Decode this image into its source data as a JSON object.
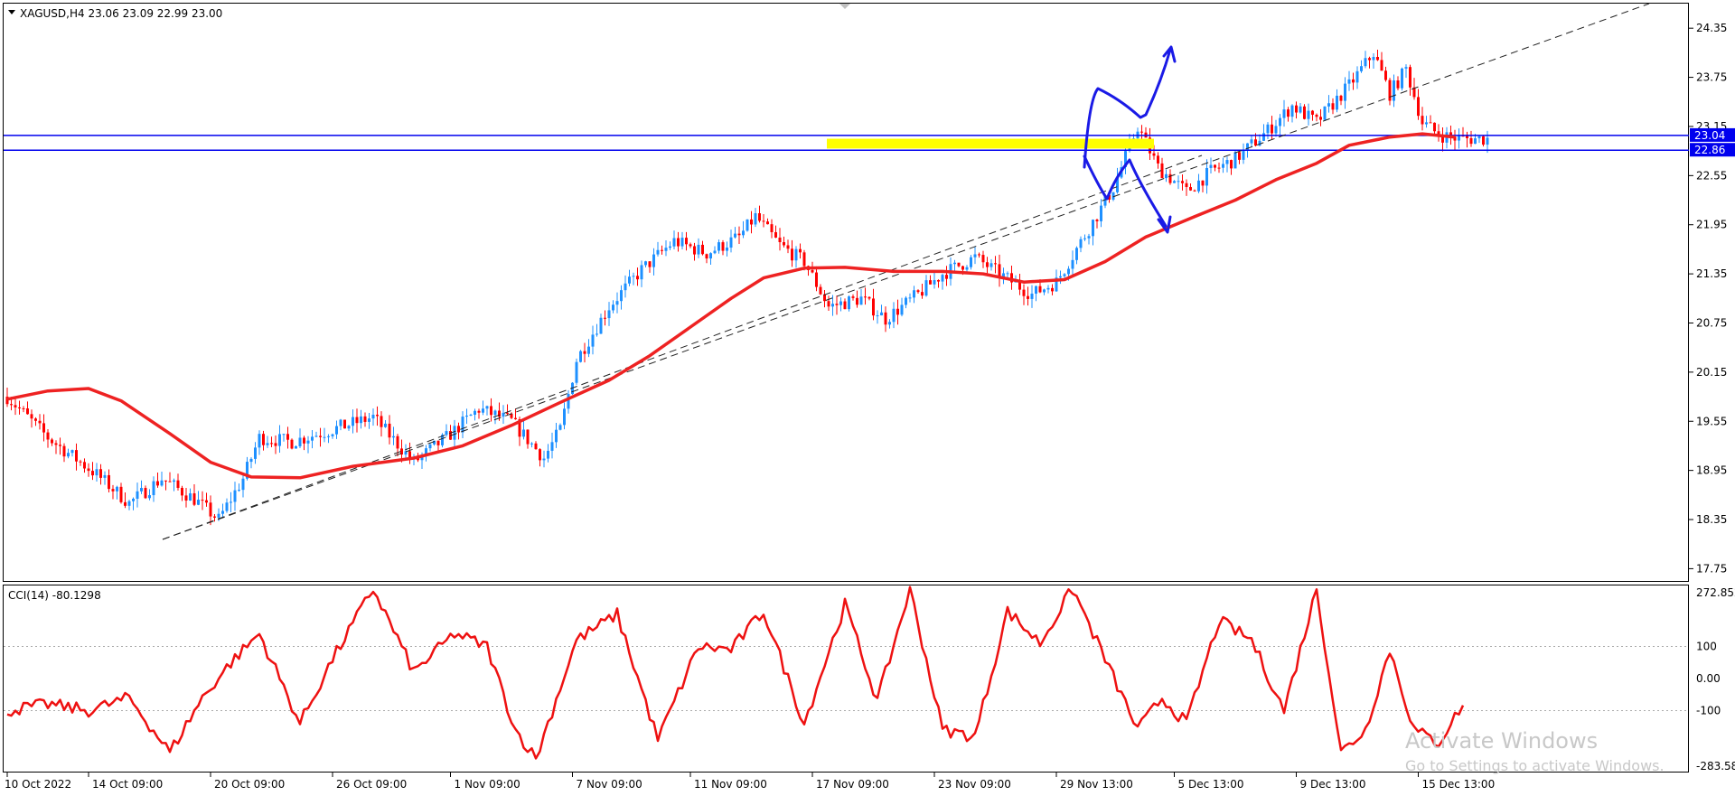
{
  "header": {
    "symbol_line": "XAGUSD,H4  23.06 23.09 22.99 23.00",
    "cci_label": "CCI(14) -80.1298"
  },
  "price_axis": {
    "ticks": [
      "24.35",
      "23.75",
      "23.15",
      "22.55",
      "21.95",
      "21.35",
      "20.75",
      "20.15",
      "19.55",
      "18.95",
      "18.35",
      "17.75"
    ],
    "tick_values": [
      24.35,
      23.75,
      23.15,
      22.55,
      21.95,
      21.35,
      20.75,
      20.15,
      19.55,
      18.95,
      18.35,
      17.75
    ],
    "range": [
      17.6,
      24.65
    ],
    "level_labels": [
      "23.04",
      "22.86"
    ],
    "level_values": [
      23.04,
      22.86
    ]
  },
  "cci_axis": {
    "ticks": [
      "272.852",
      "100",
      "0.00",
      "-100",
      "-283.582"
    ],
    "tick_values": [
      272.852,
      100,
      0,
      -100,
      -283.582
    ],
    "range": [
      -290,
      290
    ]
  },
  "time_axis": {
    "labels": [
      "10 Oct 2022",
      "14 Oct 09:00",
      "20 Oct 09:00",
      "26 Oct 09:00",
      "1 Nov 09:00",
      "7 Nov 09:00",
      "11 Nov 09:00",
      "17 Nov 09:00",
      "23 Nov 09:00",
      "29 Nov 13:00",
      "5 Dec 13:00",
      "9 Dec 13:00",
      "15 Dec 13:00"
    ],
    "label_positions": [
      0,
      20,
      50,
      80,
      109,
      139,
      168,
      198,
      228,
      258,
      287,
      317,
      347
    ]
  },
  "colors": {
    "bull": "#1e90ff",
    "bear": "#ff0000",
    "ma": "#ee2222",
    "cci": "#ee1111",
    "level": "#0000ee",
    "zone": "#ffff00",
    "drawing": "#1a1ae6",
    "trendline": "#222222",
    "axis_text": "#000000"
  },
  "chart_data": [
    {
      "type": "candlestick",
      "symbol": "XAGUSD",
      "timeframe": "H4",
      "bar_count": 365,
      "close_anchors": [
        [
          0,
          19.85
        ],
        [
          10,
          19.35
        ],
        [
          22,
          18.9
        ],
        [
          30,
          18.55
        ],
        [
          38,
          18.85
        ],
        [
          46,
          18.6
        ],
        [
          52,
          18.35
        ],
        [
          58,
          18.85
        ],
        [
          62,
          19.35
        ],
        [
          70,
          19.3
        ],
        [
          80,
          19.45
        ],
        [
          90,
          19.6
        ],
        [
          100,
          19.05
        ],
        [
          108,
          19.35
        ],
        [
          116,
          19.7
        ],
        [
          124,
          19.55
        ],
        [
          132,
          19.1
        ],
        [
          136,
          19.45
        ],
        [
          140,
          20.3
        ],
        [
          148,
          20.95
        ],
        [
          156,
          21.4
        ],
        [
          164,
          21.75
        ],
        [
          172,
          21.6
        ],
        [
          180,
          21.8
        ],
        [
          184,
          22.05
        ],
        [
          190,
          21.7
        ],
        [
          196,
          21.5
        ],
        [
          202,
          20.95
        ],
        [
          210,
          21.05
        ],
        [
          216,
          20.8
        ],
        [
          224,
          21.1
        ],
        [
          230,
          21.35
        ],
        [
          238,
          21.55
        ],
        [
          244,
          21.35
        ],
        [
          252,
          21.1
        ],
        [
          258,
          21.25
        ],
        [
          266,
          21.9
        ],
        [
          272,
          22.4
        ],
        [
          278,
          23.15
        ],
        [
          283,
          22.65
        ],
        [
          290,
          22.35
        ],
        [
          296,
          22.6
        ],
        [
          302,
          22.75
        ],
        [
          310,
          23.1
        ],
        [
          316,
          23.4
        ],
        [
          322,
          23.2
        ],
        [
          330,
          23.65
        ],
        [
          336,
          24.05
        ],
        [
          340,
          23.55
        ],
        [
          344,
          23.85
        ],
        [
          348,
          23.2
        ],
        [
          352,
          23.05
        ],
        [
          357,
          23.0
        ]
      ],
      "moving_average": [
        [
          0,
          19.82
        ],
        [
          10,
          19.92
        ],
        [
          20,
          19.95
        ],
        [
          28,
          19.8
        ],
        [
          40,
          19.4
        ],
        [
          50,
          19.05
        ],
        [
          60,
          18.87
        ],
        [
          72,
          18.86
        ],
        [
          85,
          19.0
        ],
        [
          100,
          19.1
        ],
        [
          112,
          19.25
        ],
        [
          124,
          19.5
        ],
        [
          136,
          19.78
        ],
        [
          148,
          20.05
        ],
        [
          158,
          20.35
        ],
        [
          168,
          20.7
        ],
        [
          178,
          21.05
        ],
        [
          186,
          21.3
        ],
        [
          196,
          21.42
        ],
        [
          206,
          21.43
        ],
        [
          218,
          21.38
        ],
        [
          230,
          21.38
        ],
        [
          240,
          21.35
        ],
        [
          250,
          21.25
        ],
        [
          260,
          21.28
        ],
        [
          270,
          21.5
        ],
        [
          280,
          21.8
        ],
        [
          292,
          22.05
        ],
        [
          302,
          22.25
        ],
        [
          312,
          22.5
        ],
        [
          322,
          22.7
        ],
        [
          330,
          22.92
        ],
        [
          340,
          23.02
        ],
        [
          348,
          23.06
        ],
        [
          356,
          23.02
        ]
      ],
      "levels": [
        23.04,
        22.86
      ],
      "zone": [
        22.88,
        23.0
      ]
    },
    {
      "type": "line",
      "name": "CCI(14)",
      "last_value": -80.1298,
      "values": [
        [
          0,
          -100
        ],
        [
          10,
          -80
        ],
        [
          20,
          -100
        ],
        [
          30,
          -60
        ],
        [
          40,
          -230
        ],
        [
          48,
          -60
        ],
        [
          55,
          50
        ],
        [
          62,
          140
        ],
        [
          72,
          -140
        ],
        [
          80,
          60
        ],
        [
          90,
          280
        ],
        [
          100,
          20
        ],
        [
          110,
          140
        ],
        [
          118,
          100
        ],
        [
          125,
          -160
        ],
        [
          130,
          -250
        ],
        [
          140,
          120
        ],
        [
          150,
          200
        ],
        [
          160,
          -190
        ],
        [
          170,
          100
        ],
        [
          178,
          90
        ],
        [
          186,
          210
        ],
        [
          196,
          -140
        ],
        [
          206,
          230
        ],
        [
          214,
          -70
        ],
        [
          222,
          280
        ],
        [
          230,
          -160
        ],
        [
          238,
          -180
        ],
        [
          246,
          210
        ],
        [
          254,
          110
        ],
        [
          262,
          280
        ],
        [
          270,
          60
        ],
        [
          278,
          -160
        ],
        [
          284,
          -60
        ],
        [
          290,
          -140
        ],
        [
          298,
          180
        ],
        [
          306,
          120
        ],
        [
          314,
          -100
        ],
        [
          322,
          280
        ],
        [
          328,
          -230
        ],
        [
          334,
          -160
        ],
        [
          340,
          90
        ],
        [
          346,
          -160
        ],
        [
          352,
          -200
        ],
        [
          358,
          -80
        ]
      ]
    }
  ]
}
